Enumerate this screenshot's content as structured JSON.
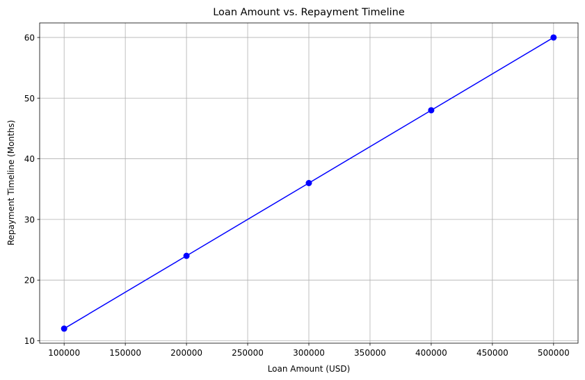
{
  "chart_data": {
    "type": "line",
    "title": "Loan Amount vs. Repayment Timeline",
    "xlabel": "Loan Amount (USD)",
    "ylabel": "Repayment Timeline (Months)",
    "x": [
      100000,
      200000,
      300000,
      400000,
      500000
    ],
    "series": [
      {
        "values": [
          12,
          24,
          36,
          48,
          60
        ],
        "color": "#0000ff",
        "marker": "circle"
      }
    ],
    "xlim": [
      80000,
      520000
    ],
    "ylim": [
      9.6,
      62.4
    ],
    "xticks": [
      100000,
      150000,
      200000,
      250000,
      300000,
      350000,
      400000,
      450000,
      500000
    ],
    "yticks": [
      10,
      20,
      30,
      40,
      50,
      60
    ],
    "grid": true,
    "grid_color": "#b0b0b0",
    "axis_color": "#000000"
  }
}
